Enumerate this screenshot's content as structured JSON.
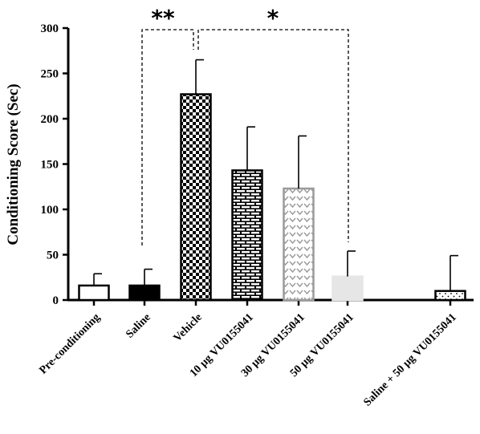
{
  "chart_data": {
    "type": "bar",
    "ylabel": "Conditioning Score (Sec)",
    "ylim": [
      0,
      300
    ],
    "yticks": [
      0,
      50,
      100,
      150,
      200,
      250,
      300
    ],
    "categories": [
      "Pre-conditioning",
      "Saline",
      "Vehicle",
      "10 µg VU0155041",
      "30 µg VU0155041",
      "50 µg VU0155041",
      "Saline + 50 µg VU0155041"
    ],
    "values": [
      16,
      16,
      227,
      143,
      123,
      26,
      10
    ],
    "errors": [
      13,
      18,
      38,
      48,
      58,
      28,
      39
    ],
    "fills": [
      "white",
      "black",
      "checker",
      "brick",
      "chevron",
      "lightgray",
      "dots"
    ],
    "colors": {
      "axis": "#000000",
      "lightgray": "#e6e6e6",
      "chevron_stroke": "#9a9a9a"
    },
    "significance": [
      {
        "label": "**",
        "from": "Saline",
        "to": "Vehicle"
      },
      {
        "label": "*",
        "from": "Vehicle",
        "to": "50 µg VU0155041"
      }
    ]
  }
}
